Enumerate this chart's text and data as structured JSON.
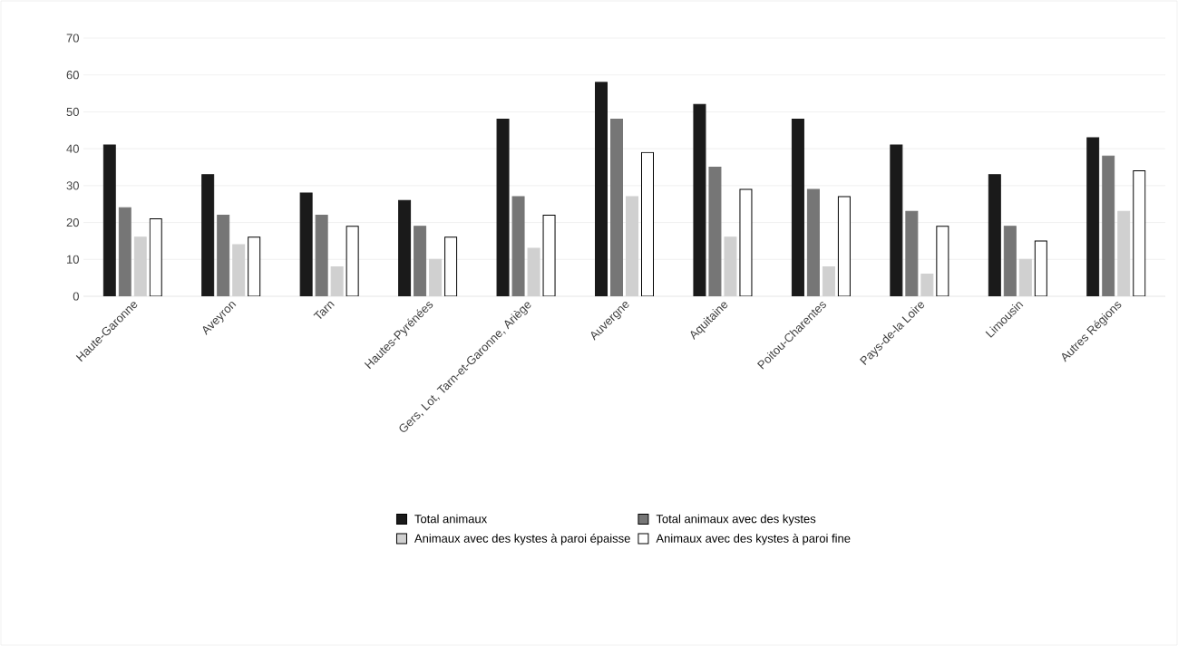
{
  "chart_data": {
    "type": "bar",
    "categories": [
      "Haute-Garonne",
      "Aveyron",
      "Tarn",
      "Hautes-Pyrénées",
      "Gers, Lot, Tarn-et-Garonne, Ariège",
      "Auvergne",
      "Aquitaine",
      "Poitou-Charentes",
      "Pays-de-la Loire",
      "Limousin",
      "Autres Régions"
    ],
    "series": [
      {
        "name": "Total animaux",
        "color": "#1a1a1a",
        "values": [
          41,
          33,
          28,
          26,
          48,
          58,
          52,
          48,
          41,
          33,
          43
        ]
      },
      {
        "name": "Total animaux avec des kystes",
        "color": "#767676",
        "values": [
          24,
          22,
          22,
          19,
          27,
          48,
          35,
          29,
          23,
          19,
          38
        ]
      },
      {
        "name": "Animaux avec des kystes à paroi épaisse",
        "color": "#d0d0d0",
        "values": [
          16,
          14,
          8,
          10,
          13,
          27,
          16,
          8,
          6,
          10,
          23
        ]
      },
      {
        "name": "Animaux avec des kystes à paroi fine",
        "color": "#ffffff",
        "values": [
          21,
          16,
          19,
          16,
          22,
          39,
          29,
          27,
          19,
          15,
          34
        ]
      }
    ],
    "ylim": [
      0,
      70
    ],
    "yticks": [
      0,
      10,
      20,
      30,
      40,
      50,
      60,
      70
    ],
    "grid": "y",
    "legend": "bottom"
  }
}
